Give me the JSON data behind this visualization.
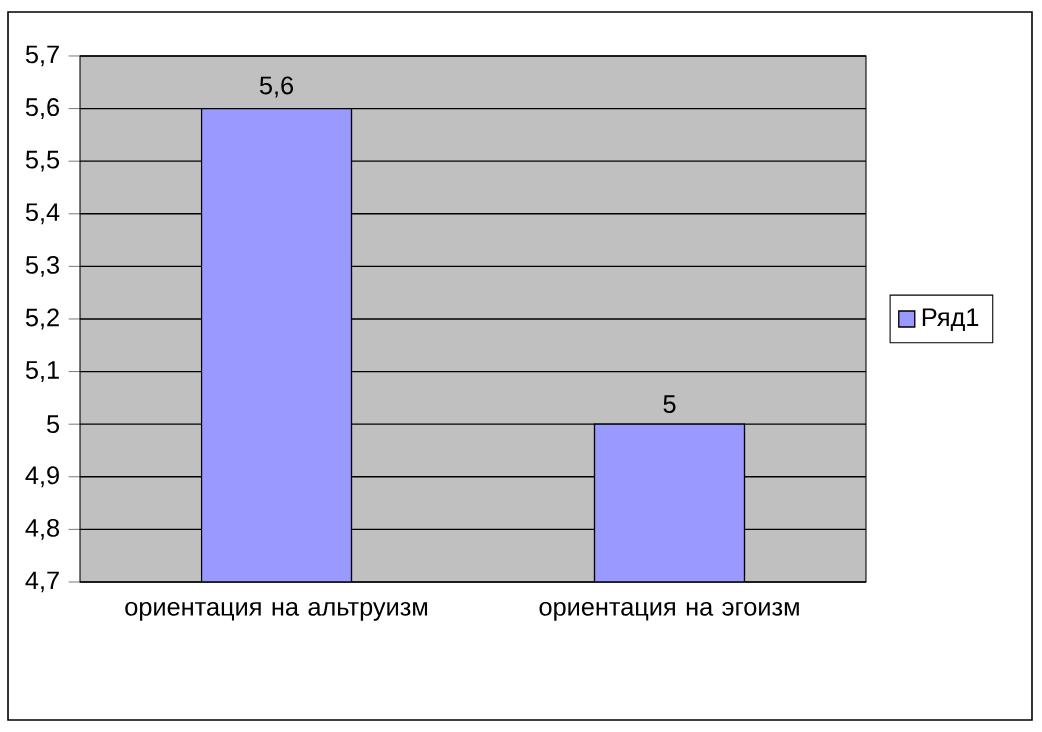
{
  "chart_data": {
    "type": "bar",
    "categories": [
      "ориентация на альтруизм",
      "ориентация на эгоизм"
    ],
    "series": [
      {
        "name": "Ряд1",
        "color": "#9999ff",
        "values": [
          5.6,
          5.0
        ],
        "value_labels": [
          "5,6",
          "5"
        ]
      }
    ],
    "ylim": [
      4.7,
      5.7
    ],
    "yticks": [
      {
        "value": 4.7,
        "label": "4,7"
      },
      {
        "value": 4.8,
        "label": "4,8"
      },
      {
        "value": 4.9,
        "label": "4,9"
      },
      5,
      {
        "value": 5.1,
        "label": "5,1"
      },
      {
        "value": 5.2,
        "label": "5,2"
      },
      {
        "value": 5.3,
        "label": "5,3"
      },
      {
        "value": 5.4,
        "label": "5,4"
      },
      {
        "value": 5.5,
        "label": "5,5"
      },
      {
        "value": 5.6,
        "label": "5,6"
      },
      {
        "value": 5.7,
        "label": "5,7"
      }
    ],
    "grid": "y",
    "legend": "right"
  }
}
